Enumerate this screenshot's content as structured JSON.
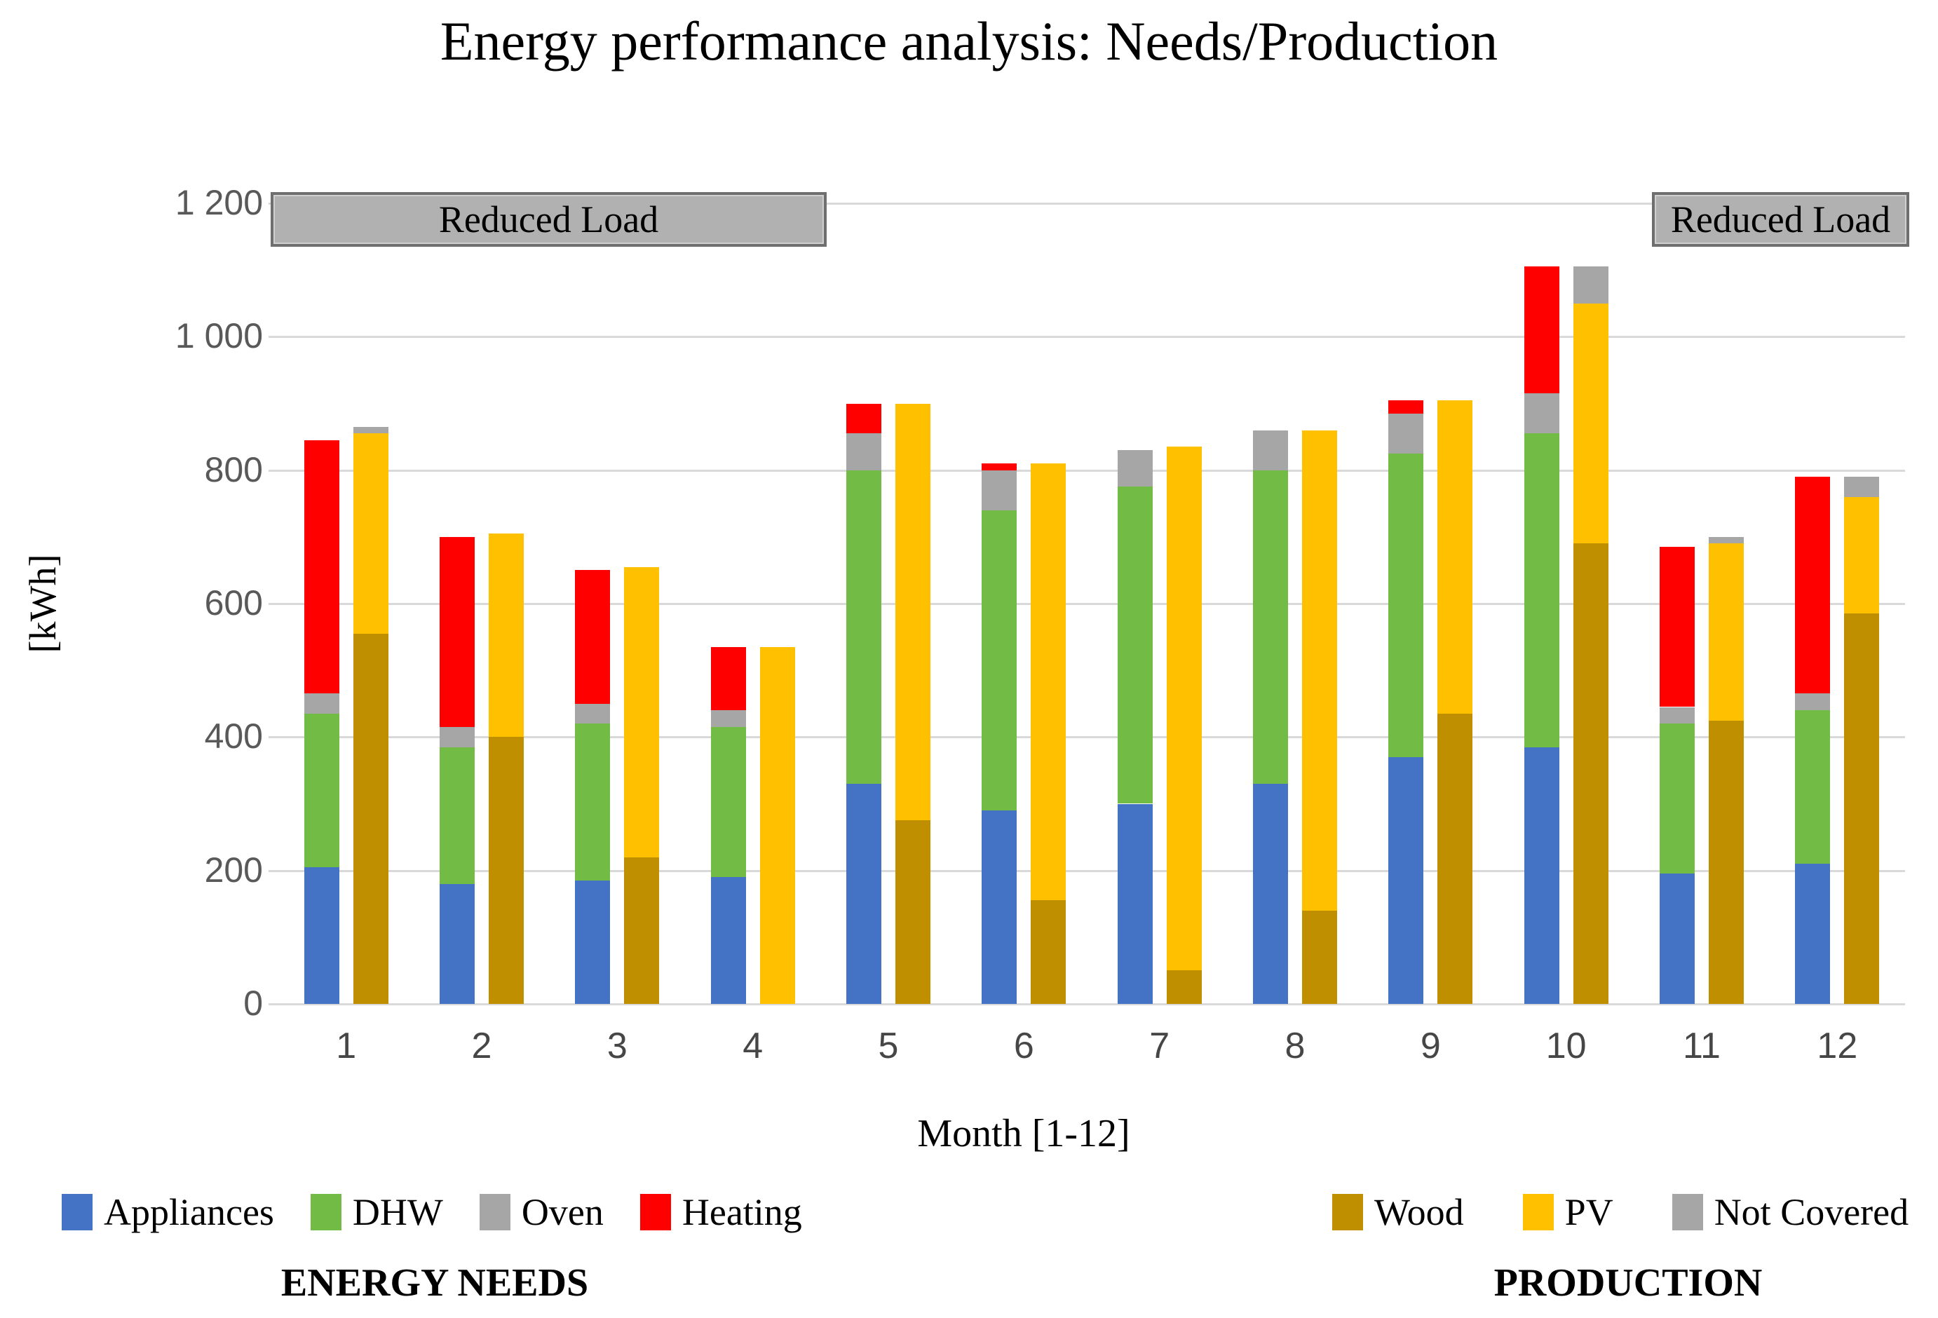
{
  "title": "Energy performance analysis: Needs/Production",
  "axes": {
    "y_label": "[kWh]",
    "x_label": "Month [1-12]",
    "y_ticks": [
      {
        "value": 0,
        "label": "0"
      },
      {
        "value": 200,
        "label": "200"
      },
      {
        "value": 400,
        "label": "400"
      },
      {
        "value": 600,
        "label": "600"
      },
      {
        "value": 800,
        "label": "800"
      },
      {
        "value": 1000,
        "label": "1 000"
      },
      {
        "value": 1200,
        "label": "1 200"
      }
    ]
  },
  "annotations": {
    "reduced_load_left": "Reduced Load",
    "reduced_load_right": "Reduced Load"
  },
  "legend": {
    "needs_caption": "ENERGY NEEDS",
    "production_caption": "PRODUCTION"
  },
  "colors": {
    "appliances": "#4472C4",
    "dhw": "#72BB44",
    "oven": "#A6A6A6",
    "heating": "#FF0000",
    "wood": "#BF8F00",
    "pv": "#FFC000",
    "not_covered": "#A6A6A6",
    "gridline": "#D9D9D9",
    "reduced_load_fill": "#B1B1B1"
  },
  "chart_data": {
    "type": "bar",
    "stacked": true,
    "title": "Energy performance analysis: Needs/Production",
    "xlabel": "Month [1-12]",
    "ylabel": "[kWh]",
    "ylim": [
      0,
      1200
    ],
    "grid": true,
    "legend_position": "bottom",
    "categories": [
      "1",
      "2",
      "3",
      "4",
      "5",
      "6",
      "7",
      "8",
      "9",
      "10",
      "11",
      "12"
    ],
    "groups": [
      {
        "name": "ENERGY NEEDS",
        "series": [
          {
            "name": "Appliances",
            "color": "#4472C4",
            "values": [
              205,
              180,
              185,
              190,
              330,
              290,
              300,
              330,
              370,
              385,
              195,
              210
            ]
          },
          {
            "name": "DHW",
            "color": "#72BB44",
            "values": [
              230,
              205,
              235,
              225,
              470,
              450,
              475,
              470,
              455,
              470,
              225,
              230
            ]
          },
          {
            "name": "Oven",
            "color": "#A6A6A6",
            "values": [
              30,
              30,
              30,
              25,
              55,
              60,
              55,
              60,
              60,
              60,
              25,
              25
            ]
          },
          {
            "name": "Heating",
            "color": "#FF0000",
            "values": [
              380,
              285,
              200,
              95,
              45,
              10,
              0,
              0,
              20,
              190,
              240,
              325
            ]
          }
        ]
      },
      {
        "name": "PRODUCTION",
        "series": [
          {
            "name": "Wood",
            "color": "#BF8F00",
            "values": [
              555,
              400,
              220,
              0,
              275,
              155,
              50,
              140,
              435,
              690,
              425,
              585
            ]
          },
          {
            "name": "PV",
            "color": "#FFC000",
            "values": [
              300,
              305,
              435,
              535,
              625,
              655,
              785,
              720,
              470,
              360,
              265,
              175
            ]
          },
          {
            "name": "Not Covered",
            "color": "#A6A6A6",
            "values": [
              10,
              0,
              0,
              0,
              0,
              0,
              0,
              0,
              0,
              55,
              10,
              30
            ]
          }
        ]
      }
    ],
    "annotations": [
      {
        "text": "Reduced Load",
        "months_covered": "1-4",
        "from_group": -0.06,
        "to_group": 4.04,
        "at_value": 1200
      },
      {
        "text": "Reduced Load",
        "months_covered": "12",
        "from_group": 10.13,
        "to_group": 12.03,
        "at_value": 1200
      }
    ]
  }
}
